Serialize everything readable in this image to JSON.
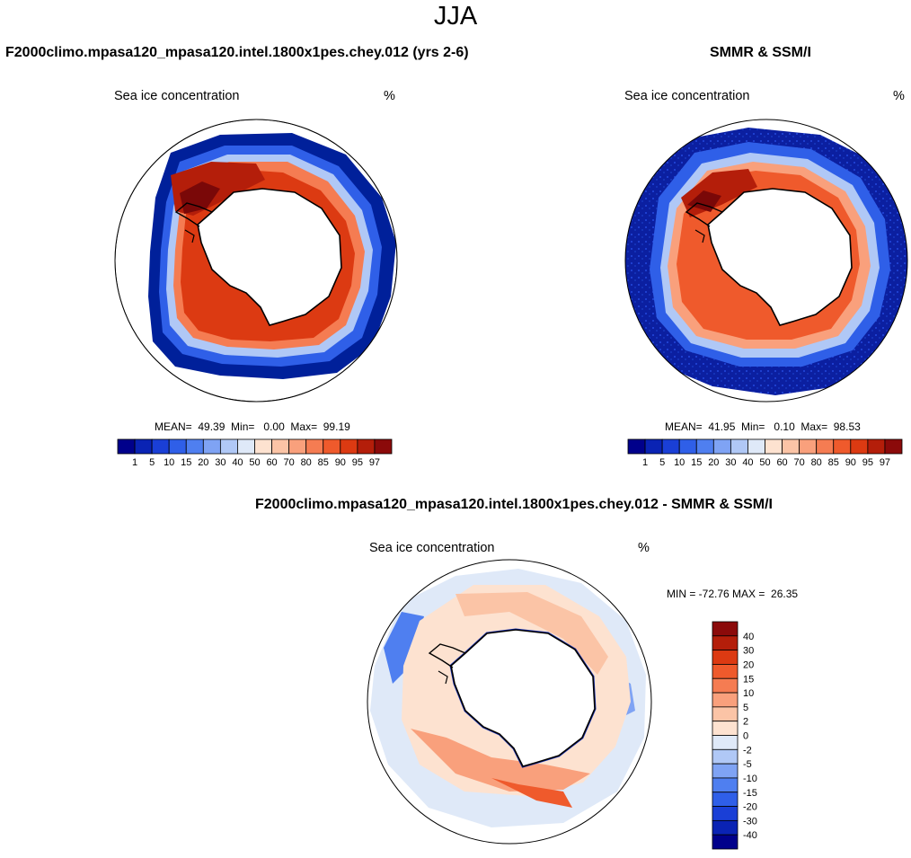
{
  "figure": {
    "title": "JJA"
  },
  "panels": [
    {
      "title": "F2000climo.mpasa120_mpasa120.intel.1800x1pes.chey.012 (yrs 2-6)",
      "variable_label": "Sea ice concentration",
      "units": "%",
      "stats": "MEAN=  49.39  Min=   0.00  Max=  99.19"
    },
    {
      "title": "SMMR & SSM/I",
      "variable_label": "Sea ice concentration",
      "units": "%",
      "stats": "MEAN=  41.95  Min=   0.10  Max=  98.53"
    },
    {
      "title": "F2000climo.mpasa120_mpasa120.intel.1800x1pes.chey.012 - SMMR & SSM/I",
      "variable_label": "Sea ice concentration",
      "units": "%",
      "stats": "MIN = -72.76 MAX =  26.35"
    }
  ],
  "colorbar_main": {
    "labels": [
      "1",
      "5",
      "10",
      "15",
      "20",
      "30",
      "40",
      "50",
      "60",
      "70",
      "80",
      "85",
      "90",
      "95",
      "97"
    ],
    "colors": [
      "#00008b",
      "#0a23b4",
      "#1a3fd6",
      "#2f5fe8",
      "#4f7ff0",
      "#7fa3f4",
      "#b0c8f6",
      "#dfe9f8",
      "#fde2d0",
      "#fbc4a6",
      "#f9a07c",
      "#f57c52",
      "#ef5a2c",
      "#dc3a12",
      "#b41e0a",
      "#8b0a0a"
    ]
  },
  "colorbar_diff": {
    "labels": [
      "40",
      "30",
      "20",
      "15",
      "10",
      "5",
      "2",
      "0",
      "-2",
      "-5",
      "-10",
      "-15",
      "-20",
      "-30",
      "-40"
    ],
    "colors": [
      "#8b0a0a",
      "#b41e0a",
      "#dc3a12",
      "#ef5a2c",
      "#f57c52",
      "#f9a07c",
      "#fbc4a6",
      "#fde2d0",
      "#dfe9f8",
      "#b0c8f6",
      "#7fa3f4",
      "#4f7ff0",
      "#2f5fe8",
      "#1a3fd6",
      "#0a23b4",
      "#00008b"
    ]
  }
}
